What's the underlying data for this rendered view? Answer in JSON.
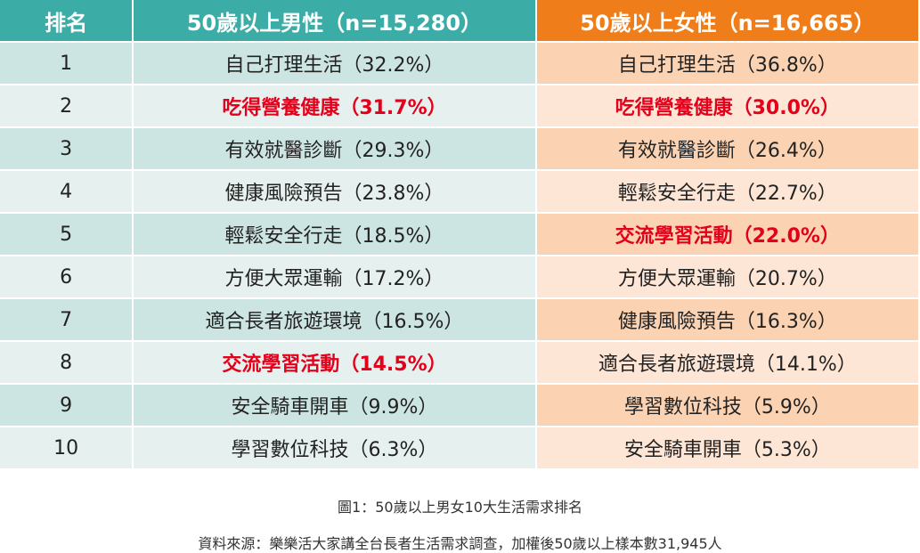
{
  "colors": {
    "header_teal": "#3bada6",
    "header_orange": "#ef7d1a",
    "row_teal_dark": "#cde5e2",
    "row_teal_light": "#e6f1ef",
    "row_orange_dark": "#fbd3b3",
    "row_orange_light": "#fde6d5",
    "highlight_text": "#e3001b"
  },
  "chart_data": {
    "type": "table",
    "columns": [
      "排名",
      "50歲以上男性（n=15,280）",
      "50歲以上女性（n=16,665）"
    ],
    "rows": [
      {
        "rank": "1",
        "male": "自己打理生活（32.2%）",
        "female": "自己打理生活（36.8%）",
        "male_hl": false,
        "female_hl": false
      },
      {
        "rank": "2",
        "male": "吃得營養健康（31.7%）",
        "female": "吃得營養健康（30.0%）",
        "male_hl": true,
        "female_hl": true
      },
      {
        "rank": "3",
        "male": "有效就醫診斷（29.3%）",
        "female": "有效就醫診斷（26.4%）",
        "male_hl": false,
        "female_hl": false
      },
      {
        "rank": "4",
        "male": "健康風險預告（23.8%）",
        "female": "輕鬆安全行走（22.7%）",
        "male_hl": false,
        "female_hl": false
      },
      {
        "rank": "5",
        "male": "輕鬆安全行走（18.5%）",
        "female": "交流學習活動（22.0%）",
        "male_hl": false,
        "female_hl": true
      },
      {
        "rank": "6",
        "male": "方便大眾運輸（17.2%）",
        "female": "方便大眾運輸（20.7%）",
        "male_hl": false,
        "female_hl": false
      },
      {
        "rank": "7",
        "male": "適合長者旅遊環境（16.5%）",
        "female": "健康風險預告（16.3%）",
        "male_hl": false,
        "female_hl": false
      },
      {
        "rank": "8",
        "male": "交流學習活動（14.5%）",
        "female": "適合長者旅遊環境（14.1%）",
        "male_hl": true,
        "female_hl": false
      },
      {
        "rank": "9",
        "male": "安全騎車開車（9.9%）",
        "female": "學習數位科技（5.9%）",
        "male_hl": false,
        "female_hl": false
      },
      {
        "rank": "10",
        "male": "學習數位科技（6.3%）",
        "female": "安全騎車開車（5.3%）",
        "male_hl": false,
        "female_hl": false
      }
    ],
    "caption": "圖1：50歲以上男女10大生活需求排名",
    "source": "資料來源：樂樂活大家講全台長者生活需求調查，加權後50歲以上樣本數31,945人"
  }
}
